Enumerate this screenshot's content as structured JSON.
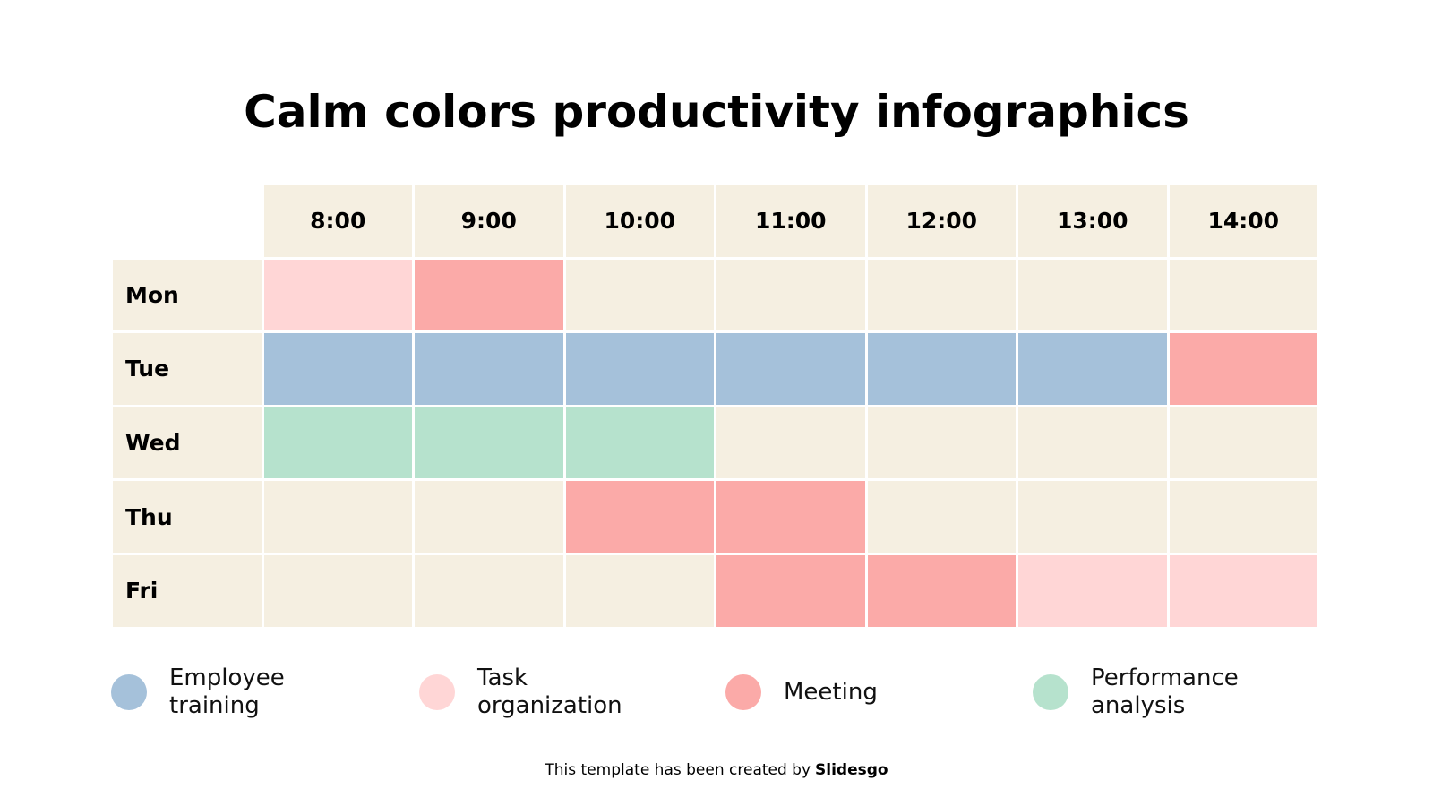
{
  "title": "Calm colors productivity infographics",
  "empty_color": "#f5efe1",
  "columns": [
    "8:00",
    "9:00",
    "10:00",
    "11:00",
    "12:00",
    "13:00",
    "14:00"
  ],
  "rows": [
    {
      "day": "Mon",
      "cells": [
        "#ffd6d6",
        "#fbaaa8",
        "#f5efe1",
        "#f5efe1",
        "#f5efe1",
        "#f5efe1",
        "#f5efe1"
      ]
    },
    {
      "day": "Tue",
      "cells": [
        "#a5c1da",
        "#a5c1da",
        "#a5c1da",
        "#a5c1da",
        "#a5c1da",
        "#a5c1da",
        "#fbaaa8"
      ]
    },
    {
      "day": "Wed",
      "cells": [
        "#b6e2cd",
        "#b6e2cd",
        "#b6e2cd",
        "#f5efe1",
        "#f5efe1",
        "#f5efe1",
        "#f5efe1"
      ]
    },
    {
      "day": "Thu",
      "cells": [
        "#f5efe1",
        "#f5efe1",
        "#fbaaa8",
        "#fbaaa8",
        "#f5efe1",
        "#f5efe1",
        "#f5efe1"
      ]
    },
    {
      "day": "Fri",
      "cells": [
        "#f5efe1",
        "#f5efe1",
        "#f5efe1",
        "#fbaaa8",
        "#fbaaa8",
        "#ffd6d6",
        "#ffd6d6"
      ]
    }
  ],
  "legend": [
    {
      "label": "Employee training",
      "color": "#a5c1da"
    },
    {
      "label": "Task organization",
      "color": "#ffd6d6"
    },
    {
      "label": "Meeting",
      "color": "#fbaaa8"
    },
    {
      "label": "Performance analysis",
      "color": "#b6e2cd"
    }
  ],
  "footer": {
    "text": "This template has been created by",
    "link": "Slidesgo"
  }
}
